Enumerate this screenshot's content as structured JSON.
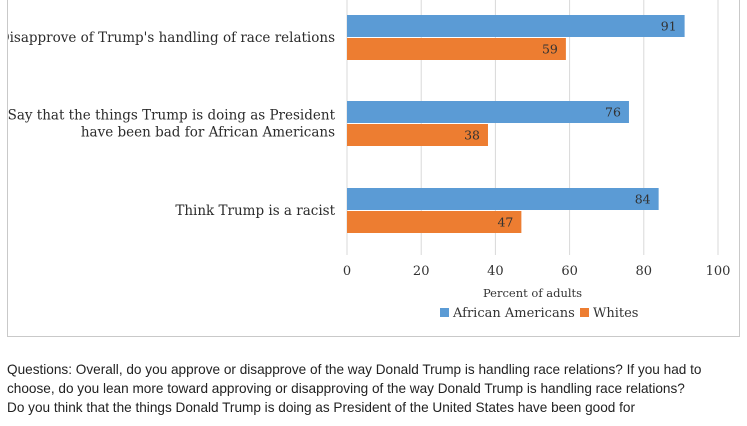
{
  "chart_data": {
    "type": "bar",
    "orientation": "horizontal",
    "categories": [
      [
        "Disapprove of Trump's handling of race relations"
      ],
      [
        "Say that the things Trump is doing as President",
        "have been bad for African Americans"
      ],
      [
        "Think Trump is a racist"
      ]
    ],
    "series": [
      {
        "name": "African Americans",
        "color": "#5b9bd5",
        "values": [
          91,
          76,
          84
        ]
      },
      {
        "name": "Whites",
        "color": "#ed7d31",
        "values": [
          59,
          38,
          47
        ]
      }
    ],
    "xlabel": "Percent of adults",
    "xlim": [
      0,
      100
    ],
    "xticks": [
      "0",
      "20",
      "40",
      "60",
      "80",
      "100"
    ],
    "grid": "vertical",
    "legend_position": "bottom",
    "gridline_color": "#d9d9d9"
  },
  "notes": {
    "questions": "Questions: Overall, do you approve or disapprove of the way Donald Trump is handling race relations? If you had to choose, do you lean more toward approving or disapproving of the way Donald Trump is handling race relations?",
    "question_2": "Do you think that the things Donald Trump is doing as President of the United States have been good for"
  }
}
